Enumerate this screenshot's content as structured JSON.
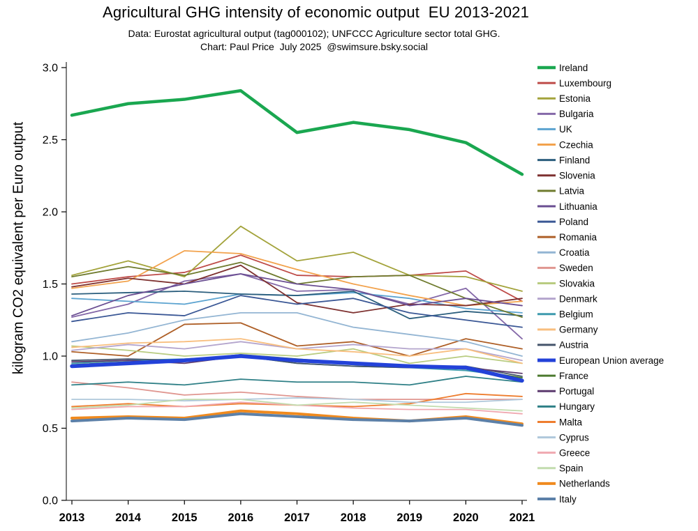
{
  "title": "Agricultural GHG intensity of economic output  EU 2013-2021",
  "subtitle1": "Data: Eurostat agricultural output (tag000102); UNFCCC Agriculture sector total GHG.",
  "subtitle2": "Chart: Paul Price  July 2025  @swimsure.bsky.social",
  "chart_data": {
    "type": "line",
    "x": [
      2013,
      2014,
      2015,
      2016,
      2017,
      2018,
      2019,
      2020,
      2021
    ],
    "xlabel": "",
    "ylabel": "kilogram CO2 equivalent per Euro output",
    "ylim": [
      0.0,
      3.0
    ],
    "ytick_step": 0.5,
    "grid": "off",
    "legend_position": "right",
    "axis_color": "#000000",
    "series": [
      {
        "name": "Ireland",
        "color": "#1AA750",
        "width": 4.5,
        "values": [
          2.67,
          2.75,
          2.78,
          2.84,
          2.55,
          2.62,
          2.57,
          2.48,
          2.26
        ]
      },
      {
        "name": "Luxembourg",
        "color": "#BE4B48",
        "width": 1.8,
        "values": [
          1.5,
          1.55,
          1.58,
          1.7,
          1.56,
          1.55,
          1.56,
          1.59,
          1.38
        ]
      },
      {
        "name": "Estonia",
        "color": "#A3A33B",
        "width": 1.8,
        "values": [
          1.56,
          1.66,
          1.55,
          1.9,
          1.66,
          1.72,
          1.56,
          1.55,
          1.45
        ]
      },
      {
        "name": "Bulgaria",
        "color": "#8468A8",
        "width": 1.8,
        "values": [
          1.27,
          1.36,
          1.52,
          1.57,
          1.45,
          1.46,
          1.36,
          1.47,
          1.12
        ]
      },
      {
        "name": "UK",
        "color": "#5BA3D0",
        "width": 1.8,
        "values": [
          1.4,
          1.38,
          1.36,
          1.43,
          1.42,
          1.44,
          1.4,
          1.33,
          1.3
        ]
      },
      {
        "name": "Czechia",
        "color": "#F2A24C",
        "width": 1.8,
        "values": [
          1.47,
          1.52,
          1.73,
          1.71,
          1.6,
          1.5,
          1.42,
          1.35,
          1.38
        ]
      },
      {
        "name": "Finland",
        "color": "#2B5E7D",
        "width": 1.8,
        "values": [
          1.43,
          1.44,
          1.45,
          1.43,
          1.42,
          1.45,
          1.26,
          1.31,
          1.28
        ]
      },
      {
        "name": "Slovenia",
        "color": "#7E3130",
        "width": 1.8,
        "values": [
          1.48,
          1.54,
          1.5,
          1.63,
          1.37,
          1.3,
          1.36,
          1.35,
          1.4
        ]
      },
      {
        "name": "Latvia",
        "color": "#6F7B2E",
        "width": 1.8,
        "values": [
          1.55,
          1.62,
          1.56,
          1.65,
          1.5,
          1.55,
          1.56,
          1.4,
          1.27
        ]
      },
      {
        "name": "Lithuania",
        "color": "#6A4E92",
        "width": 1.8,
        "values": [
          1.28,
          1.42,
          1.5,
          1.57,
          1.5,
          1.46,
          1.35,
          1.4,
          1.35
        ]
      },
      {
        "name": "Poland",
        "color": "#3A5795",
        "width": 1.8,
        "values": [
          1.24,
          1.3,
          1.28,
          1.42,
          1.36,
          1.4,
          1.3,
          1.25,
          1.2
        ]
      },
      {
        "name": "Romania",
        "color": "#AE5F27",
        "width": 1.8,
        "values": [
          1.03,
          1.0,
          1.22,
          1.23,
          1.07,
          1.1,
          1.0,
          1.12,
          1.05
        ]
      },
      {
        "name": "Croatia",
        "color": "#93B5D3",
        "width": 1.8,
        "values": [
          1.1,
          1.16,
          1.25,
          1.3,
          1.3,
          1.2,
          1.15,
          1.1,
          1.0
        ]
      },
      {
        "name": "Sweden",
        "color": "#E09690",
        "width": 1.8,
        "values": [
          0.82,
          0.78,
          0.73,
          0.75,
          0.72,
          0.7,
          0.7,
          0.7,
          0.7
        ]
      },
      {
        "name": "Slovakia",
        "color": "#B9CC81",
        "width": 1.8,
        "values": [
          1.07,
          1.04,
          1.0,
          1.02,
          1.0,
          1.05,
          0.95,
          1.0,
          0.95
        ]
      },
      {
        "name": "Denmark",
        "color": "#B4A5CD",
        "width": 1.8,
        "values": [
          1.04,
          1.08,
          1.05,
          1.1,
          1.05,
          1.08,
          1.05,
          1.05,
          0.97
        ]
      },
      {
        "name": "Belgium",
        "color": "#3D9AAE",
        "width": 1.8,
        "values": [
          0.95,
          0.97,
          0.98,
          1.0,
          0.95,
          0.93,
          0.92,
          0.9,
          0.85
        ]
      },
      {
        "name": "Germany",
        "color": "#F8BE7E",
        "width": 1.8,
        "values": [
          1.06,
          1.09,
          1.1,
          1.12,
          1.05,
          1.03,
          1.0,
          1.05,
          0.95
        ]
      },
      {
        "name": "Austria",
        "color": "#44546A",
        "width": 1.8,
        "values": [
          0.97,
          0.98,
          0.97,
          1.0,
          0.95,
          0.93,
          0.92,
          0.93,
          0.86
        ]
      },
      {
        "name": "European Union average",
        "color": "#2342D9",
        "width": 5.5,
        "values": [
          0.93,
          0.95,
          0.97,
          1.0,
          0.97,
          0.95,
          0.93,
          0.92,
          0.83
        ]
      },
      {
        "name": "France",
        "color": "#4C7A2F",
        "width": 1.8,
        "values": [
          0.94,
          0.96,
          0.97,
          1.01,
          0.98,
          0.95,
          0.93,
          0.91,
          0.85
        ]
      },
      {
        "name": "Portugal",
        "color": "#5C3A6E",
        "width": 1.8,
        "values": [
          0.96,
          0.97,
          0.95,
          1.0,
          0.96,
          0.95,
          0.93,
          0.92,
          0.88
        ]
      },
      {
        "name": "Hungary",
        "color": "#2E7F86",
        "width": 1.8,
        "values": [
          0.8,
          0.82,
          0.8,
          0.84,
          0.82,
          0.82,
          0.8,
          0.86,
          0.82
        ]
      },
      {
        "name": "Malta",
        "color": "#EE7D2E",
        "width": 1.8,
        "values": [
          0.65,
          0.67,
          0.65,
          0.67,
          0.66,
          0.65,
          0.67,
          0.74,
          0.72
        ]
      },
      {
        "name": "Cyprus",
        "color": "#AFC8DB",
        "width": 1.8,
        "values": [
          0.7,
          0.7,
          0.69,
          0.7,
          0.71,
          0.7,
          0.68,
          0.68,
          0.7
        ]
      },
      {
        "name": "Greece",
        "color": "#F0A8B0",
        "width": 1.8,
        "values": [
          0.63,
          0.65,
          0.65,
          0.68,
          0.66,
          0.64,
          0.63,
          0.63,
          0.6
        ]
      },
      {
        "name": "Spain",
        "color": "#C2DCAE",
        "width": 1.8,
        "values": [
          0.64,
          0.66,
          0.7,
          0.7,
          0.66,
          0.68,
          0.66,
          0.64,
          0.62
        ]
      },
      {
        "name": "Netherlands",
        "color": "#F08A1E",
        "width": 4.0,
        "values": [
          0.57,
          0.58,
          0.57,
          0.62,
          0.6,
          0.57,
          0.55,
          0.58,
          0.53
        ]
      },
      {
        "name": "Italy",
        "color": "#5C80A8",
        "width": 4.0,
        "values": [
          0.55,
          0.57,
          0.56,
          0.6,
          0.58,
          0.56,
          0.55,
          0.57,
          0.52
        ]
      }
    ]
  }
}
